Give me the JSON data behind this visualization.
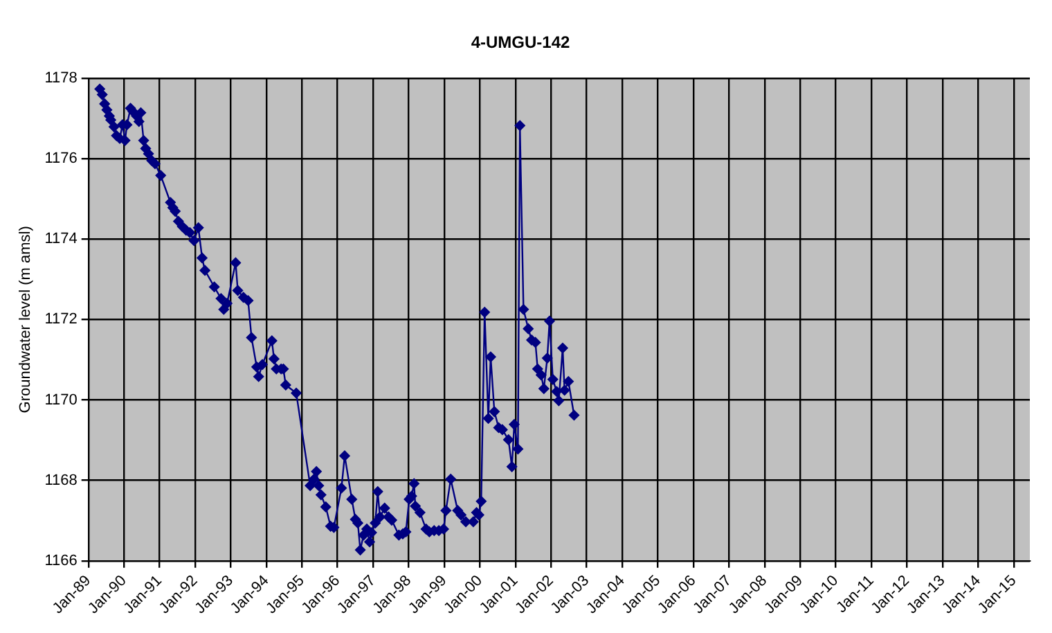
{
  "chart_data": {
    "type": "line",
    "title": "4-UMGU-142",
    "ylabel": "Groundwater level (m amsl)",
    "xlim": [
      "1989-01-01",
      "2015-06-15"
    ],
    "xticks": [
      {
        "value": "1989-01-01",
        "label": "Jan-89"
      },
      {
        "value": "1990-01-01",
        "label": "Jan-90"
      },
      {
        "value": "1991-01-01",
        "label": "Jan-91"
      },
      {
        "value": "1992-01-01",
        "label": "Jan-92"
      },
      {
        "value": "1993-01-01",
        "label": "Jan-93"
      },
      {
        "value": "1994-01-01",
        "label": "Jan-94"
      },
      {
        "value": "1995-01-01",
        "label": "Jan-95"
      },
      {
        "value": "1996-01-01",
        "label": "Jan-96"
      },
      {
        "value": "1997-01-01",
        "label": "Jan-97"
      },
      {
        "value": "1998-01-01",
        "label": "Jan-98"
      },
      {
        "value": "1999-01-01",
        "label": "Jan-99"
      },
      {
        "value": "2000-01-01",
        "label": "Jan-00"
      },
      {
        "value": "2001-01-01",
        "label": "Jan-01"
      },
      {
        "value": "2002-01-01",
        "label": "Jan-02"
      },
      {
        "value": "2003-01-01",
        "label": "Jan-03"
      },
      {
        "value": "2004-01-01",
        "label": "Jan-04"
      },
      {
        "value": "2005-01-01",
        "label": "Jan-05"
      },
      {
        "value": "2006-01-01",
        "label": "Jan-06"
      },
      {
        "value": "2007-01-01",
        "label": "Jan-07"
      },
      {
        "value": "2008-01-01",
        "label": "Jan-08"
      },
      {
        "value": "2009-01-01",
        "label": "Jan-09"
      },
      {
        "value": "2010-01-01",
        "label": "Jan-10"
      },
      {
        "value": "2011-01-01",
        "label": "Jan-11"
      },
      {
        "value": "2012-01-01",
        "label": "Jan-12"
      },
      {
        "value": "2013-01-01",
        "label": "Jan-13"
      },
      {
        "value": "2014-01-01",
        "label": "Jan-14"
      },
      {
        "value": "2015-01-01",
        "label": "Jan-15"
      }
    ],
    "ylim": [
      1166,
      1178
    ],
    "yticks": [
      1166,
      1168,
      1170,
      1172,
      1174,
      1176,
      1178
    ],
    "grid": true,
    "legend": false,
    "marker": "diamond",
    "line_style": "solid",
    "series": [
      {
        "color": "#000080",
        "x": [
          "1989-04-28",
          "1989-05-23",
          "1989-06-17",
          "1989-07-10",
          "1989-08-04",
          "1989-08-19",
          "1989-09-21",
          "1989-10-16",
          "1989-11-19",
          "1989-12-17",
          "1990-01-12",
          "1990-02-01",
          "1990-03-09",
          "1990-04-03",
          "1990-05-10",
          "1990-06-04",
          "1990-06-23",
          "1990-07-22",
          "1990-08-12",
          "1990-09-10",
          "1990-10-13",
          "1990-11-16",
          "1991-01-13",
          "1991-04-23",
          "1991-05-17",
          "1991-06-11",
          "1991-07-14",
          "1991-08-23",
          "1991-09-30",
          "1991-11-08",
          "1991-12-21",
          "1992-02-04",
          "1992-03-13",
          "1992-04-11",
          "1992-07-16",
          "1992-09-23",
          "1992-10-21",
          "1992-11-24",
          "1993-02-20",
          "1993-03-14",
          "1993-05-11",
          "1993-06-28",
          "1993-08-02",
          "1993-09-24",
          "1993-10-14",
          "1993-11-21",
          "1994-02-27",
          "1994-03-21",
          "1994-04-14",
          "1994-06-02",
          "1994-06-25",
          "1994-07-19",
          "1994-11-04",
          "1995-03-27",
          "1995-05-05",
          "1995-05-30",
          "1995-06-22",
          "1995-07-16",
          "1995-09-03",
          "1995-10-22",
          "1995-11-25",
          "1996-02-11",
          "1996-03-15",
          "1996-05-27",
          "1996-07-03",
          "1996-07-28",
          "1996-08-22",
          "1996-09-25",
          "1996-10-28",
          "1996-11-26",
          "1996-12-16",
          "1997-01-23",
          "1997-02-17",
          "1997-03-12",
          "1997-04-29",
          "1997-06-08",
          "1997-07-11",
          "1997-09-22",
          "1997-11-01",
          "1997-12-03",
          "1998-01-06",
          "1998-01-31",
          "1998-02-25",
          "1998-03-10",
          "1998-04-27",
          "1998-06-28",
          "1998-08-01",
          "1998-09-19",
          "1998-11-06",
          "1998-12-25",
          "1999-01-18",
          "1999-03-08",
          "1999-05-19",
          "1999-06-22",
          "1999-08-10",
          "1999-10-26",
          "1999-11-28",
          "1999-12-22",
          "2000-01-15",
          "2000-02-19",
          "2000-03-28",
          "2000-04-21",
          "2000-05-29",
          "2000-07-12",
          "2000-08-19",
          "2000-10-21",
          "2000-11-25",
          "2000-12-19",
          "2001-01-26",
          "2001-02-15",
          "2001-03-24",
          "2001-05-12",
          "2001-06-15",
          "2001-07-24",
          "2001-08-16",
          "2001-09-21",
          "2001-10-19",
          "2001-11-23",
          "2001-12-16",
          "2002-01-19",
          "2002-02-27",
          "2002-03-21",
          "2002-04-30",
          "2002-05-19",
          "2002-06-28",
          "2002-08-25"
        ],
        "values": [
          1177.73,
          1177.59,
          1177.36,
          1177.21,
          1177.06,
          1176.96,
          1176.79,
          1176.57,
          1176.5,
          1176.84,
          1176.45,
          1176.84,
          1177.25,
          1177.17,
          1177.06,
          1176.92,
          1177.14,
          1176.45,
          1176.25,
          1176.12,
          1175.95,
          1175.87,
          1175.58,
          1174.91,
          1174.78,
          1174.69,
          1174.44,
          1174.31,
          1174.22,
          1174.16,
          1173.96,
          1174.28,
          1173.53,
          1173.22,
          1172.81,
          1172.52,
          1172.25,
          1172.4,
          1173.41,
          1172.72,
          1172.55,
          1172.47,
          1171.55,
          1170.82,
          1170.58,
          1170.88,
          1171.47,
          1171.02,
          1170.77,
          1170.77,
          1170.77,
          1170.37,
          1170.17,
          1167.87,
          1168.03,
          1168.22,
          1167.87,
          1167.64,
          1167.34,
          1166.86,
          1166.83,
          1167.81,
          1168.61,
          1167.53,
          1167.03,
          1166.94,
          1166.27,
          1166.64,
          1166.79,
          1166.47,
          1166.7,
          1166.94,
          1167.72,
          1167.09,
          1167.31,
          1167.09,
          1167.01,
          1166.64,
          1166.67,
          1166.72,
          1167.53,
          1167.61,
          1167.92,
          1167.36,
          1167.2,
          1166.79,
          1166.72,
          1166.75,
          1166.75,
          1166.79,
          1167.25,
          1168.03,
          1167.25,
          1167.14,
          1166.97,
          1166.97,
          1167.2,
          1167.14,
          1167.48,
          1172.18,
          1169.54,
          1171.07,
          1169.71,
          1169.31,
          1169.26,
          1169.01,
          1168.34,
          1169.39,
          1168.78,
          1176.82,
          1172.25,
          1171.77,
          1171.49,
          1171.43,
          1170.77,
          1170.62,
          1170.28,
          1171.04,
          1171.96,
          1170.51,
          1170.21,
          1169.98,
          1171.29,
          1170.24,
          1170.46,
          1169.62
        ]
      }
    ]
  }
}
